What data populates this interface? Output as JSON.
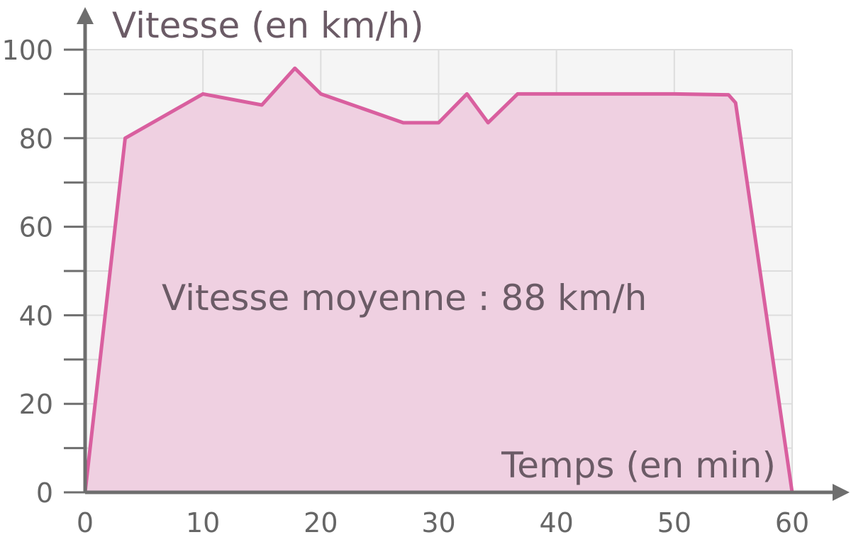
{
  "chart_data": {
    "type": "area",
    "ylabel": "Vitesse (en km/h)",
    "xlabel": "Temps (en min)",
    "annotation": "Vitesse moyenne : 88 km/h",
    "xlim": [
      0,
      60
    ],
    "ylim": [
      0,
      100
    ],
    "x_ticks": [
      0,
      10,
      20,
      30,
      40,
      50,
      60
    ],
    "y_ticks": [
      0,
      20,
      40,
      60,
      80,
      100
    ],
    "y_minor_step": 10,
    "grid": true,
    "colors": {
      "line": "#d95f9f",
      "fill": "#efd0e1",
      "plot_background": "#f5f5f5",
      "grid": "#dddddd",
      "axis": "#6e6e6e",
      "text": "#6b5b66"
    },
    "series": [
      {
        "x": [
          0,
          3.4,
          10,
          15,
          17.8,
          20,
          27,
          30,
          32.4,
          34.2,
          36.7,
          40,
          50,
          54.6,
          55.2,
          60
        ],
        "y": [
          0,
          80,
          90,
          87.5,
          95.8,
          90,
          83.5,
          83.5,
          90,
          83.5,
          90,
          90,
          90,
          89.8,
          88,
          0
        ]
      }
    ]
  }
}
